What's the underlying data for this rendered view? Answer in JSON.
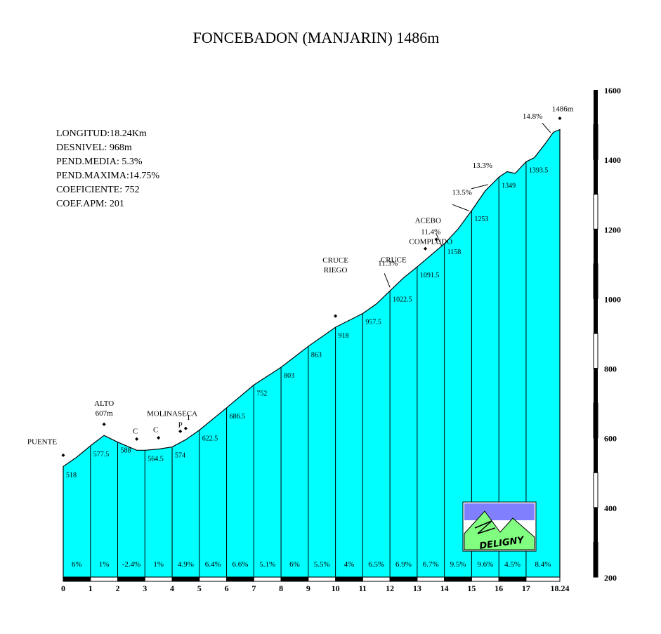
{
  "chart_data": {
    "type": "area",
    "title": "FONCEBADON (MANJARIN) 1486m",
    "stats": [
      "LONGITUD:18.24Km",
      "DESNIVEL: 968m",
      "PEND.MEDIA: 5.3%",
      "PEND.MAXIMA:14.75%",
      "COEFICIENTE: 752",
      "COEF.APM: 201"
    ],
    "xlim": [
      0,
      18.24
    ],
    "ylim": [
      200,
      1600
    ],
    "x_ticks": [
      "0",
      "1",
      "2",
      "3",
      "4",
      "5",
      "6",
      "7",
      "8",
      "9",
      "10",
      "11",
      "12",
      "13",
      "14",
      "15",
      "16",
      "17",
      "18.24"
    ],
    "x_tick_values": [
      0,
      1,
      2,
      3,
      4,
      5,
      6,
      7,
      8,
      9,
      10,
      11,
      12,
      13,
      14,
      15,
      16,
      17,
      18.24
    ],
    "y_ticks": [
      "200",
      "400",
      "600",
      "800",
      "1000",
      "1200",
      "1400",
      "1600"
    ],
    "y_tick_values": [
      200,
      400,
      600,
      800,
      1000,
      1200,
      1400,
      1600
    ],
    "profile": [
      [
        0,
        518
      ],
      [
        0.5,
        545
      ],
      [
        1,
        577.5
      ],
      [
        1.5,
        607
      ],
      [
        2,
        588
      ],
      [
        2.7,
        564.5
      ],
      [
        3,
        564.5
      ],
      [
        3.5,
        568
      ],
      [
        4,
        574
      ],
      [
        4.5,
        595
      ],
      [
        5,
        622.5
      ],
      [
        6,
        686.5
      ],
      [
        7,
        752
      ],
      [
        8,
        803
      ],
      [
        9,
        863
      ],
      [
        10,
        918
      ],
      [
        11,
        957.5
      ],
      [
        11.5,
        985
      ],
      [
        12,
        1022.5
      ],
      [
        12.5,
        1060
      ],
      [
        13,
        1091.5
      ],
      [
        14,
        1158
      ],
      [
        14.5,
        1200
      ],
      [
        15,
        1253
      ],
      [
        15.5,
        1310
      ],
      [
        16,
        1349
      ],
      [
        16.3,
        1365
      ],
      [
        16.6,
        1360
      ],
      [
        17,
        1393.5
      ],
      [
        17.3,
        1405
      ],
      [
        17.7,
        1445
      ],
      [
        18,
        1478
      ],
      [
        18.24,
        1486
      ]
    ],
    "km_elevations": [
      "518",
      "577.5",
      "588",
      "564.5",
      "574",
      "622.5",
      "686.5",
      "752",
      "803",
      "863",
      "918",
      "957.5",
      "1022.5",
      "1091.5",
      "1158",
      "1253",
      "1349",
      "1393.5"
    ],
    "segment_gradients": [
      "6%",
      "1%",
      "-2.4%",
      "1%",
      "4.9%",
      "6.4%",
      "6.6%",
      "5.1%",
      "6%",
      "5.5%",
      "4%",
      "6.5%",
      "6.9%",
      "6.7%",
      "9.5%",
      "9.6%",
      "4.5%",
      "8.4%"
    ],
    "annotations": [
      {
        "text": "PUENTE",
        "x": 0
      },
      {
        "text": "ALTO",
        "x": 1.5
      },
      {
        "text": "607m",
        "x": 1.5
      },
      {
        "text": "C",
        "x": 2.7
      },
      {
        "text": "C",
        "x": 3.5
      },
      {
        "text": "MOLINASECA",
        "x": 4
      },
      {
        "text": "P",
        "x": 4.3
      },
      {
        "text": "I",
        "x": 4.5
      },
      {
        "text": "CRUCE",
        "x": 10
      },
      {
        "text": "RIEGO",
        "x": 10
      },
      {
        "text": "11.3%",
        "x": 12
      },
      {
        "text": "CRUCE",
        "x": 12.7
      },
      {
        "text": "COMPLUDO",
        "x": 13.5
      },
      {
        "text": "11.4%",
        "x": 13.5
      },
      {
        "text": "ACEBO",
        "x": 13.5
      },
      {
        "text": "13.5%",
        "x": 14.8
      },
      {
        "text": "13.3%",
        "x": 15.5
      },
      {
        "text": "14.8%",
        "x": 17.7
      },
      {
        "text": "1486m",
        "x": 18.24
      }
    ],
    "logo_text": "DELIGNY",
    "colors": {
      "fill": "#00ffff",
      "outline": "#000000",
      "logo_sky": "#8080ff",
      "logo_mountain": "#80ff80"
    }
  }
}
